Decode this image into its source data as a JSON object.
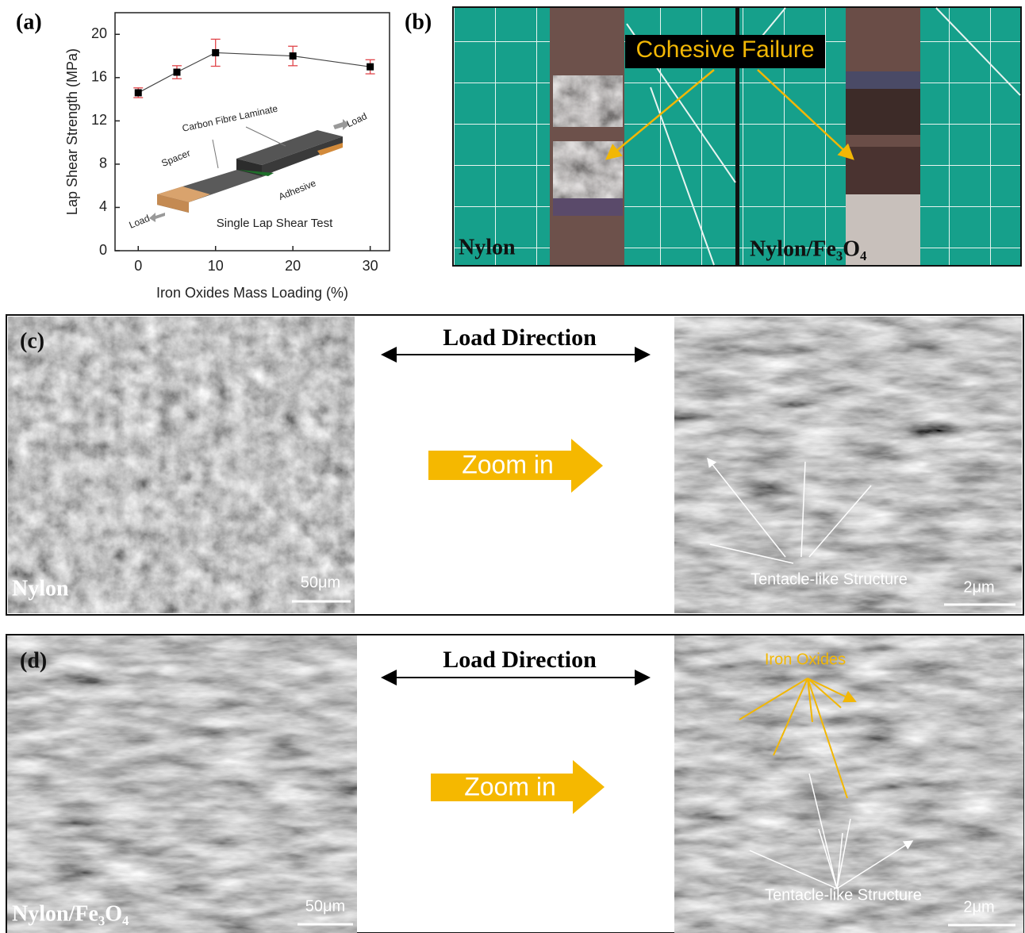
{
  "chart_data": {
    "type": "line",
    "panel_label": "(a)",
    "x_label": "Iron Oxides Mass Loading (%)",
    "y_label": "Lap Shear Strength (MPa)",
    "x": [
      0,
      5,
      10,
      20,
      30
    ],
    "series": [
      {
        "color": "#000000",
        "error_color": "#e0454a",
        "values": [
          14.6,
          16.5,
          18.3,
          18.0,
          17.0
        ],
        "errors": [
          0.45,
          0.6,
          1.25,
          0.9,
          0.65
        ]
      }
    ],
    "xlim": [
      -3,
      32.5
    ],
    "xticks": [
      0,
      10,
      20,
      30
    ],
    "ylim": [
      0,
      22
    ],
    "yticks": [
      0,
      4,
      8,
      12,
      16,
      20
    ],
    "annotations": [
      "Carbon Fibre Laminate",
      "Load",
      "Spacer",
      "Adhesive",
      "Load",
      "Single Lap Shear Test"
    ]
  },
  "panel_b": {
    "label": "(b)",
    "callout": "Cohesive Failure",
    "left_caption": "Nylon",
    "right_caption": "Nylon/Fe₃O₄"
  },
  "panel_c": {
    "label": "(c)",
    "direction": "Load Direction",
    "zoom": "Zoom in",
    "caption": "Nylon",
    "left_scale": "50μm",
    "feature": "Tentacle-like Structure",
    "right_scale": "2μm"
  },
  "panel_d": {
    "label": "(d)",
    "direction": "Load Direction",
    "zoom": "Zoom in",
    "caption": "Nylon/Fe₃O₄",
    "left_scale": "50μm",
    "particles": "Iron Oxides",
    "feature": "Tentacle-like Structure",
    "right_scale": "2μm"
  }
}
